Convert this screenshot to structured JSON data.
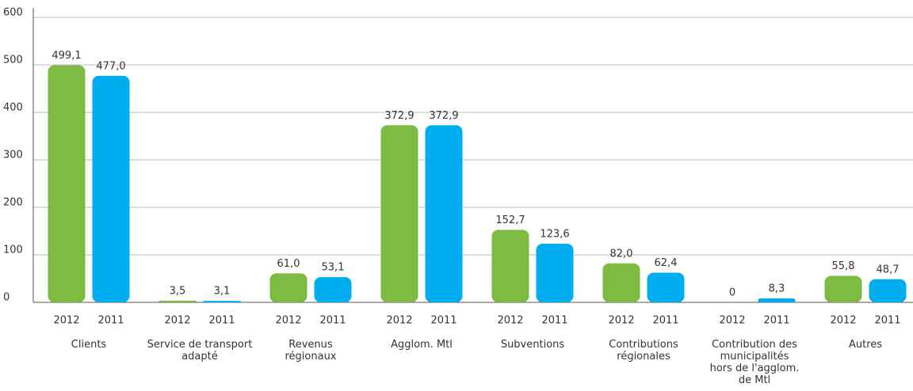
{
  "chart_data": {
    "type": "bar",
    "categories": [
      [
        "Clients"
      ],
      [
        "Service de transport",
        "adapté"
      ],
      [
        "Revenus",
        "régionaux"
      ],
      [
        "Agglom. Mtl"
      ],
      [
        "Subventions"
      ],
      [
        "Contributions",
        "régionales"
      ],
      [
        "Contribution des",
        "municipalités",
        "hors de l'agglom.",
        "de Mtl"
      ],
      [
        "Autres"
      ]
    ],
    "series": [
      {
        "name": "2012",
        "color": "#7dbb42",
        "values": [
          499.1,
          3.5,
          61.0,
          372.9,
          152.7,
          82.0,
          0,
          55.8
        ],
        "value_labels": [
          "499,1",
          "3,5",
          "61,0",
          "372,9",
          "152,7",
          "82,0",
          "0",
          "55,8"
        ]
      },
      {
        "name": "2011",
        "color": "#00aeef",
        "values": [
          477.0,
          3.1,
          53.1,
          372.9,
          123.6,
          62.4,
          8.3,
          48.7
        ],
        "value_labels": [
          "477,0",
          "3,1",
          "53,1",
          "372,9",
          "123,6",
          "62,4",
          "8,3",
          "48,7"
        ]
      }
    ],
    "ylim": [
      0,
      600
    ],
    "yticks": [
      0,
      100,
      200,
      300,
      400,
      500,
      600
    ],
    "grid": true
  }
}
